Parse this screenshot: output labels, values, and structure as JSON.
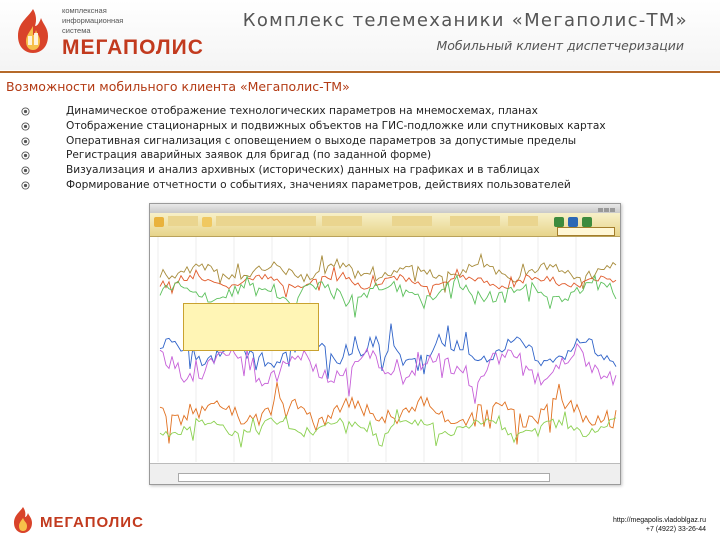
{
  "brand": {
    "tagline_lines": [
      "комплексная",
      "информационная",
      "система"
    ],
    "name": "МЕГАПОЛИС",
    "color": "#c23a1e"
  },
  "header": {
    "title": "Комплекс телемеханики «Мегаполис-ТМ»",
    "subtitle": "Мобильный клиент диспетчеризации"
  },
  "section": {
    "title": "Возможности мобильного клиента «Мегаполис-ТМ»",
    "features": [
      "Динамическое отображение технологических параметров на мнемосхемах, планах",
      "Отображение стационарных и подвижных объектов на ГИС-подложке или спутниковых картах",
      "Оперативная сигнализация с оповещением о выходе параметров за допустимые пределы",
      "Регистрация аварийных заявок для бригад (по заданной форме)",
      "Визуализация и анализ архивных (исторических) данных на графиках и в таблицах",
      "Формирование отчетности о событиях, значениях параметров, действиях пользователей"
    ]
  },
  "screenshot": {
    "series_colors": [
      "#a78b3a",
      "#e05a2a",
      "#5cc05c",
      "#2e62c8",
      "#c65fd8",
      "#e07020",
      "#8bd050"
    ]
  },
  "footer": {
    "name": "МЕГАПОЛИС",
    "url": "http://megapolis.vladoblgaz.ru",
    "phone": "+7 (4922) 33-26-44"
  }
}
